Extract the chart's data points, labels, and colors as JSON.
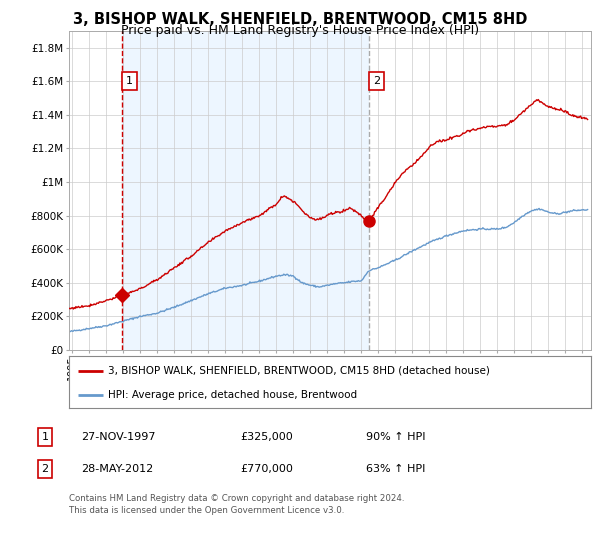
{
  "title": "3, BISHOP WALK, SHENFIELD, BRENTWOOD, CM15 8HD",
  "subtitle": "Price paid vs. HM Land Registry's House Price Index (HPI)",
  "title_fontsize": 10.5,
  "subtitle_fontsize": 9.0,
  "xlim_start": 1994.8,
  "xlim_end": 2025.5,
  "ylim_min": 0,
  "ylim_max": 1900000,
  "yticks": [
    0,
    200000,
    400000,
    600000,
    800000,
    1000000,
    1200000,
    1400000,
    1600000,
    1800000
  ],
  "ytick_labels": [
    "£0",
    "£200K",
    "£400K",
    "£600K",
    "£800K",
    "£1M",
    "£1.2M",
    "£1.4M",
    "£1.6M",
    "£1.8M"
  ],
  "xticks": [
    1995,
    1996,
    1997,
    1998,
    1999,
    2000,
    2001,
    2002,
    2003,
    2004,
    2005,
    2006,
    2007,
    2008,
    2009,
    2010,
    2011,
    2012,
    2013,
    2014,
    2015,
    2016,
    2017,
    2018,
    2019,
    2020,
    2021,
    2022,
    2023,
    2024,
    2025
  ],
  "red_line_color": "#cc0000",
  "blue_line_color": "#6699cc",
  "vline1_color": "#cc0000",
  "vline1_style": "--",
  "vline2_color": "#aaaaaa",
  "vline2_style": "--",
  "shade_color": "#ddeeff",
  "shade_alpha": 0.5,
  "marker_color": "#cc0000",
  "purchase1_x": 1997.92,
  "purchase1_y": 325000,
  "purchase1_marker": "D",
  "purchase1_label": "1",
  "purchase2_x": 2012.42,
  "purchase2_y": 770000,
  "purchase2_marker": "o",
  "purchase2_label": "2",
  "legend_red_label": "3, BISHOP WALK, SHENFIELD, BRENTWOOD, CM15 8HD (detached house)",
  "legend_blue_label": "HPI: Average price, detached house, Brentwood",
  "table_data": [
    {
      "num": "1",
      "date": "27-NOV-1997",
      "price": "£325,000",
      "hpi": "90% ↑ HPI"
    },
    {
      "num": "2",
      "date": "28-MAY-2012",
      "price": "£770,000",
      "hpi": "63% ↑ HPI"
    }
  ],
  "footer": "Contains HM Land Registry data © Crown copyright and database right 2024.\nThis data is licensed under the Open Government Licence v3.0.",
  "background_color": "#ffffff",
  "plot_bg_color": "#ffffff",
  "grid_color": "#cccccc"
}
